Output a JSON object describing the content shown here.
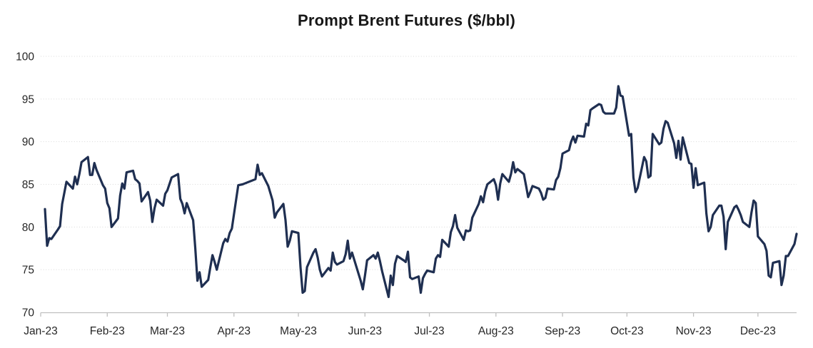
{
  "chart_data": {
    "type": "line",
    "title": "Prompt Brent Futures ($/bbl)",
    "series_name": "Prompt Brent futures price",
    "unit": "$/bbl",
    "xlabel": "",
    "ylabel": "",
    "ylim": [
      70,
      100
    ],
    "yticks": [
      70,
      75,
      80,
      85,
      90,
      95,
      100
    ],
    "xtick_labels": [
      "Jan-23",
      "Feb-23",
      "Mar-23",
      "Apr-23",
      "May-23",
      "Jun-23",
      "Jul-23",
      "Aug-23",
      "Sep-23",
      "Oct-23",
      "Nov-23",
      "Dec-23"
    ],
    "grid": "horizontal-dotted",
    "legend": "none",
    "line_color": "#1f2f51",
    "gridline_color": "#d9d9d9",
    "axis_color": "#bfbfbf",
    "label_color": "#262626",
    "title_color": "#171717",
    "background_color": "#ffffff",
    "points": [
      [
        "2023-01-03",
        82.1
      ],
      [
        "2023-01-04",
        77.8
      ],
      [
        "2023-01-05",
        78.7
      ],
      [
        "2023-01-06",
        78.6
      ],
      [
        "2023-01-09",
        79.7
      ],
      [
        "2023-01-10",
        80.1
      ],
      [
        "2023-01-11",
        82.7
      ],
      [
        "2023-01-12",
        84.0
      ],
      [
        "2023-01-13",
        85.3
      ],
      [
        "2023-01-16",
        84.5
      ],
      [
        "2023-01-17",
        85.9
      ],
      [
        "2023-01-18",
        85.0
      ],
      [
        "2023-01-19",
        86.2
      ],
      [
        "2023-01-20",
        87.6
      ],
      [
        "2023-01-23",
        88.2
      ],
      [
        "2023-01-24",
        86.1
      ],
      [
        "2023-01-25",
        86.1
      ],
      [
        "2023-01-26",
        87.5
      ],
      [
        "2023-01-27",
        86.7
      ],
      [
        "2023-01-30",
        84.9
      ],
      [
        "2023-01-31",
        84.5
      ],
      [
        "2023-02-01",
        82.8
      ],
      [
        "2023-02-02",
        82.2
      ],
      [
        "2023-02-03",
        80.0
      ],
      [
        "2023-02-06",
        81.0
      ],
      [
        "2023-02-07",
        83.7
      ],
      [
        "2023-02-08",
        85.1
      ],
      [
        "2023-02-09",
        84.5
      ],
      [
        "2023-02-10",
        86.4
      ],
      [
        "2023-02-13",
        86.6
      ],
      [
        "2023-02-14",
        85.6
      ],
      [
        "2023-02-15",
        85.4
      ],
      [
        "2023-02-16",
        85.1
      ],
      [
        "2023-02-17",
        83.0
      ],
      [
        "2023-02-20",
        84.1
      ],
      [
        "2023-02-21",
        83.1
      ],
      [
        "2023-02-22",
        80.6
      ],
      [
        "2023-02-23",
        82.2
      ],
      [
        "2023-02-24",
        83.2
      ],
      [
        "2023-02-27",
        82.5
      ],
      [
        "2023-02-28",
        83.9
      ],
      [
        "2023-03-01",
        84.3
      ],
      [
        "2023-03-03",
        85.8
      ],
      [
        "2023-03-06",
        86.2
      ],
      [
        "2023-03-07",
        83.3
      ],
      [
        "2023-03-08",
        82.7
      ],
      [
        "2023-03-09",
        81.6
      ],
      [
        "2023-03-10",
        82.8
      ],
      [
        "2023-03-13",
        80.8
      ],
      [
        "2023-03-14",
        77.5
      ],
      [
        "2023-03-15",
        73.7
      ],
      [
        "2023-03-16",
        74.7
      ],
      [
        "2023-03-17",
        73.0
      ],
      [
        "2023-03-20",
        73.8
      ],
      [
        "2023-03-21",
        75.3
      ],
      [
        "2023-03-22",
        76.7
      ],
      [
        "2023-03-23",
        75.9
      ],
      [
        "2023-03-24",
        75.0
      ],
      [
        "2023-03-27",
        78.1
      ],
      [
        "2023-03-28",
        78.6
      ],
      [
        "2023-03-29",
        78.3
      ],
      [
        "2023-03-30",
        79.3
      ],
      [
        "2023-03-31",
        79.8
      ],
      [
        "2023-04-03",
        84.9
      ],
      [
        "2023-04-05",
        85.0
      ],
      [
        "2023-04-06",
        85.1
      ],
      [
        "2023-04-11",
        85.6
      ],
      [
        "2023-04-12",
        87.3
      ],
      [
        "2023-04-13",
        86.1
      ],
      [
        "2023-04-14",
        86.3
      ],
      [
        "2023-04-17",
        84.8
      ],
      [
        "2023-04-19",
        83.1
      ],
      [
        "2023-04-20",
        81.1
      ],
      [
        "2023-04-21",
        81.7
      ],
      [
        "2023-04-24",
        82.7
      ],
      [
        "2023-04-25",
        80.8
      ],
      [
        "2023-04-26",
        77.7
      ],
      [
        "2023-04-27",
        78.4
      ],
      [
        "2023-04-28",
        79.5
      ],
      [
        "2023-05-01",
        79.3
      ],
      [
        "2023-05-02",
        75.3
      ],
      [
        "2023-05-03",
        72.3
      ],
      [
        "2023-05-04",
        72.5
      ],
      [
        "2023-05-05",
        75.3
      ],
      [
        "2023-05-08",
        77.0
      ],
      [
        "2023-05-09",
        77.4
      ],
      [
        "2023-05-10",
        76.4
      ],
      [
        "2023-05-11",
        75.0
      ],
      [
        "2023-05-12",
        74.2
      ],
      [
        "2023-05-15",
        75.2
      ],
      [
        "2023-05-16",
        74.9
      ],
      [
        "2023-05-17",
        77.0
      ],
      [
        "2023-05-18",
        75.9
      ],
      [
        "2023-05-19",
        75.6
      ],
      [
        "2023-05-22",
        76.0
      ],
      [
        "2023-05-23",
        76.8
      ],
      [
        "2023-05-24",
        78.4
      ],
      [
        "2023-05-25",
        76.3
      ],
      [
        "2023-05-26",
        77.0
      ],
      [
        "2023-05-30",
        73.7
      ],
      [
        "2023-05-31",
        72.7
      ],
      [
        "2023-06-01",
        74.3
      ],
      [
        "2023-06-02",
        76.1
      ],
      [
        "2023-06-05",
        76.7
      ],
      [
        "2023-06-06",
        76.3
      ],
      [
        "2023-06-07",
        77.0
      ],
      [
        "2023-06-08",
        76.0
      ],
      [
        "2023-06-09",
        74.8
      ],
      [
        "2023-06-12",
        71.8
      ],
      [
        "2023-06-13",
        74.3
      ],
      [
        "2023-06-14",
        73.2
      ],
      [
        "2023-06-15",
        75.7
      ],
      [
        "2023-06-16",
        76.6
      ],
      [
        "2023-06-19",
        76.1
      ],
      [
        "2023-06-20",
        75.9
      ],
      [
        "2023-06-21",
        77.1
      ],
      [
        "2023-06-22",
        74.1
      ],
      [
        "2023-06-23",
        73.9
      ],
      [
        "2023-06-26",
        74.2
      ],
      [
        "2023-06-27",
        72.3
      ],
      [
        "2023-06-28",
        74.0
      ],
      [
        "2023-06-29",
        74.5
      ],
      [
        "2023-06-30",
        74.9
      ],
      [
        "2023-07-03",
        74.7
      ],
      [
        "2023-07-04",
        76.3
      ],
      [
        "2023-07-05",
        76.7
      ],
      [
        "2023-07-06",
        76.5
      ],
      [
        "2023-07-07",
        78.5
      ],
      [
        "2023-07-10",
        77.7
      ],
      [
        "2023-07-11",
        79.4
      ],
      [
        "2023-07-12",
        80.1
      ],
      [
        "2023-07-13",
        81.4
      ],
      [
        "2023-07-14",
        79.9
      ],
      [
        "2023-07-17",
        78.5
      ],
      [
        "2023-07-18",
        79.6
      ],
      [
        "2023-07-19",
        79.5
      ],
      [
        "2023-07-20",
        79.6
      ],
      [
        "2023-07-21",
        81.1
      ],
      [
        "2023-07-24",
        82.7
      ],
      [
        "2023-07-25",
        83.6
      ],
      [
        "2023-07-26",
        82.9
      ],
      [
        "2023-07-27",
        84.2
      ],
      [
        "2023-07-28",
        85.0
      ],
      [
        "2023-07-31",
        85.6
      ],
      [
        "2023-08-01",
        84.9
      ],
      [
        "2023-08-02",
        83.2
      ],
      [
        "2023-08-03",
        85.1
      ],
      [
        "2023-08-04",
        86.2
      ],
      [
        "2023-08-07",
        85.3
      ],
      [
        "2023-08-08",
        86.2
      ],
      [
        "2023-08-09",
        87.6
      ],
      [
        "2023-08-10",
        86.4
      ],
      [
        "2023-08-11",
        86.8
      ],
      [
        "2023-08-14",
        86.2
      ],
      [
        "2023-08-15",
        84.9
      ],
      [
        "2023-08-16",
        83.5
      ],
      [
        "2023-08-17",
        84.1
      ],
      [
        "2023-08-18",
        84.8
      ],
      [
        "2023-08-21",
        84.5
      ],
      [
        "2023-08-22",
        84.0
      ],
      [
        "2023-08-23",
        83.2
      ],
      [
        "2023-08-24",
        83.4
      ],
      [
        "2023-08-25",
        84.5
      ],
      [
        "2023-08-28",
        84.4
      ],
      [
        "2023-08-29",
        85.5
      ],
      [
        "2023-08-30",
        85.9
      ],
      [
        "2023-08-31",
        86.9
      ],
      [
        "2023-09-01",
        88.6
      ],
      [
        "2023-09-04",
        89.0
      ],
      [
        "2023-09-05",
        90.0
      ],
      [
        "2023-09-06",
        90.6
      ],
      [
        "2023-09-07",
        89.9
      ],
      [
        "2023-09-08",
        90.7
      ],
      [
        "2023-09-11",
        90.6
      ],
      [
        "2023-09-12",
        92.1
      ],
      [
        "2023-09-13",
        91.9
      ],
      [
        "2023-09-14",
        93.7
      ],
      [
        "2023-09-15",
        93.9
      ],
      [
        "2023-09-18",
        94.4
      ],
      [
        "2023-09-19",
        94.3
      ],
      [
        "2023-09-20",
        93.5
      ],
      [
        "2023-09-21",
        93.3
      ],
      [
        "2023-09-22",
        93.3
      ],
      [
        "2023-09-25",
        93.3
      ],
      [
        "2023-09-26",
        94.0
      ],
      [
        "2023-09-27",
        96.5
      ],
      [
        "2023-09-28",
        95.4
      ],
      [
        "2023-09-29",
        95.3
      ],
      [
        "2023-10-02",
        90.7
      ],
      [
        "2023-10-03",
        90.9
      ],
      [
        "2023-10-04",
        85.8
      ],
      [
        "2023-10-05",
        84.1
      ],
      [
        "2023-10-06",
        84.6
      ],
      [
        "2023-10-09",
        88.2
      ],
      [
        "2023-10-10",
        87.7
      ],
      [
        "2023-10-11",
        85.8
      ],
      [
        "2023-10-12",
        86.0
      ],
      [
        "2023-10-13",
        90.9
      ],
      [
        "2023-10-16",
        89.7
      ],
      [
        "2023-10-17",
        89.9
      ],
      [
        "2023-10-18",
        91.5
      ],
      [
        "2023-10-19",
        92.4
      ],
      [
        "2023-10-20",
        92.2
      ],
      [
        "2023-10-23",
        89.8
      ],
      [
        "2023-10-24",
        88.1
      ],
      [
        "2023-10-25",
        90.1
      ],
      [
        "2023-10-26",
        87.9
      ],
      [
        "2023-10-27",
        90.5
      ],
      [
        "2023-10-30",
        87.5
      ],
      [
        "2023-10-31",
        87.4
      ],
      [
        "2023-11-01",
        84.6
      ],
      [
        "2023-11-02",
        86.9
      ],
      [
        "2023-11-03",
        84.9
      ],
      [
        "2023-11-06",
        85.2
      ],
      [
        "2023-11-07",
        81.6
      ],
      [
        "2023-11-08",
        79.5
      ],
      [
        "2023-11-09",
        80.0
      ],
      [
        "2023-11-10",
        81.4
      ],
      [
        "2023-11-13",
        82.5
      ],
      [
        "2023-11-14",
        82.5
      ],
      [
        "2023-11-15",
        81.2
      ],
      [
        "2023-11-16",
        77.4
      ],
      [
        "2023-11-17",
        80.6
      ],
      [
        "2023-11-20",
        82.3
      ],
      [
        "2023-11-21",
        82.5
      ],
      [
        "2023-11-22",
        82.0
      ],
      [
        "2023-11-23",
        81.4
      ],
      [
        "2023-11-24",
        80.6
      ],
      [
        "2023-11-27",
        80.0
      ],
      [
        "2023-11-28",
        81.7
      ],
      [
        "2023-11-29",
        83.1
      ],
      [
        "2023-11-30",
        82.8
      ],
      [
        "2023-12-01",
        78.9
      ],
      [
        "2023-12-04",
        78.0
      ],
      [
        "2023-12-05",
        77.2
      ],
      [
        "2023-12-06",
        74.3
      ],
      [
        "2023-12-07",
        74.1
      ],
      [
        "2023-12-08",
        75.8
      ],
      [
        "2023-12-11",
        76.0
      ],
      [
        "2023-12-12",
        73.2
      ],
      [
        "2023-12-13",
        74.3
      ],
      [
        "2023-12-14",
        76.6
      ],
      [
        "2023-12-15",
        76.6
      ],
      [
        "2023-12-18",
        78.0
      ],
      [
        "2023-12-19",
        79.2
      ]
    ]
  }
}
